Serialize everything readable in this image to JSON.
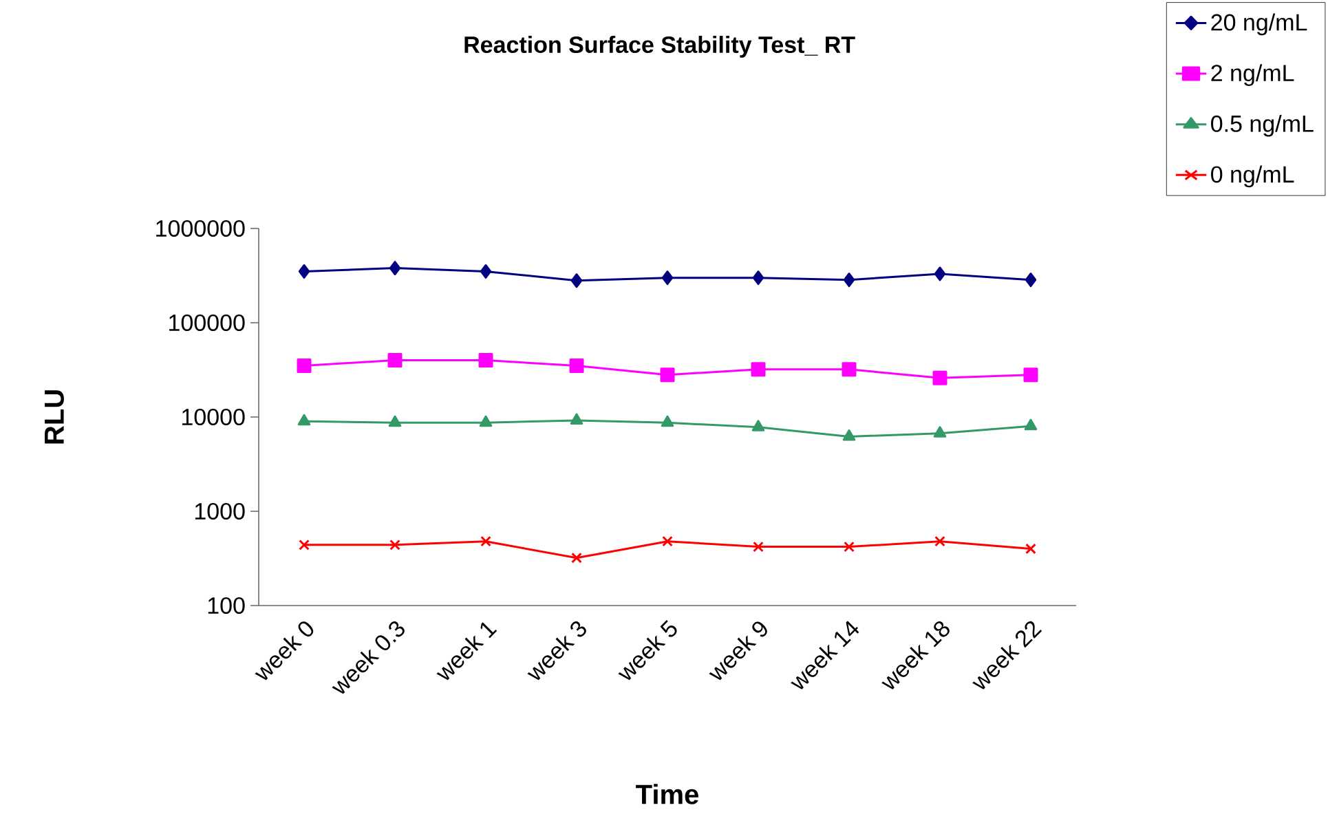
{
  "chart_data": {
    "type": "line",
    "title": "Reaction Surface Stability Test_ RT",
    "xlabel": "Time",
    "ylabel": "RLU",
    "categories": [
      "week 0",
      "week 0.3",
      "week 1",
      "week 3",
      "week 5",
      "week 9",
      "week 14",
      "week 18",
      "week 22"
    ],
    "log": "y",
    "ylim": [
      100,
      1000000
    ],
    "yticks": [
      100,
      1000,
      10000,
      100000,
      1000000
    ],
    "grid": false,
    "legend": "top right",
    "series": [
      {
        "name": "20 ng/mL",
        "color": "#000080",
        "marker": "diamond",
        "values": [
          350000,
          380000,
          350000,
          280000,
          300000,
          300000,
          285000,
          330000,
          285000
        ]
      },
      {
        "name": "2 ng/mL",
        "color": "#ff00ff",
        "marker": "square",
        "values": [
          35000,
          40000,
          40000,
          35000,
          28000,
          32000,
          32000,
          26000,
          28000
        ]
      },
      {
        "name": "0.5 ng/mL",
        "color": "#339966",
        "marker": "triangle",
        "values": [
          9000,
          8700,
          8700,
          9200,
          8700,
          7800,
          6200,
          6700,
          8000
        ]
      },
      {
        "name": "0 ng/mL",
        "color": "#ff0000",
        "marker": "cross",
        "values": [
          440,
          440,
          480,
          320,
          480,
          420,
          420,
          480,
          400
        ]
      }
    ]
  }
}
